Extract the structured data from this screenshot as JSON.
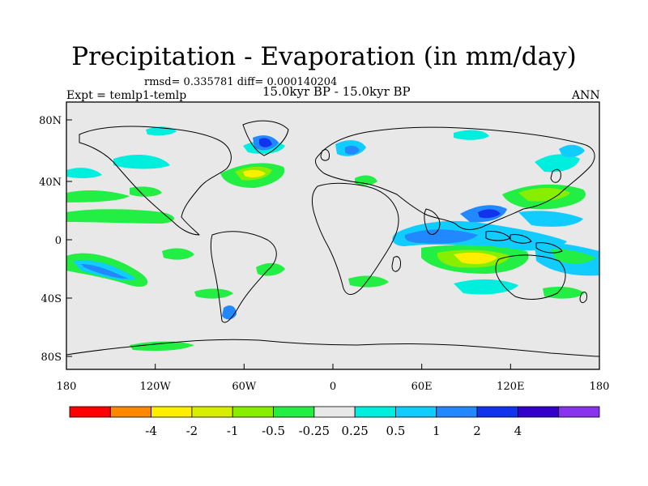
{
  "title": "Precipitation - Evaporation (in mm/day)",
  "stats": "rmsd= 0.335781 diff= 0.000140204",
  "experiment": "Expt = temlp1-temlp",
  "period": "15.0kyr BP - 15.0kyr BP",
  "season": "ANN",
  "lat_ticks": [
    "80N",
    "40N",
    "0",
    "40S",
    "80S"
  ],
  "lon_ticks": [
    "180",
    "120W",
    "60W",
    "0",
    "60E",
    "120E",
    "180"
  ],
  "colorbar": {
    "colors": [
      "#ff0000",
      "#ff8800",
      "#ffee00",
      "#d8ee00",
      "#88ee00",
      "#22ee44",
      "#e8e8e8",
      "#00eedd",
      "#11ccff",
      "#2288ff",
      "#1133ee",
      "#3300cc",
      "#8833ee"
    ],
    "labels": [
      "-4",
      "-2",
      "-1",
      "-0.5",
      "-0.25",
      "0.25",
      "0.5",
      "1",
      "2",
      "4"
    ]
  },
  "background_color": "#e8e8e8"
}
